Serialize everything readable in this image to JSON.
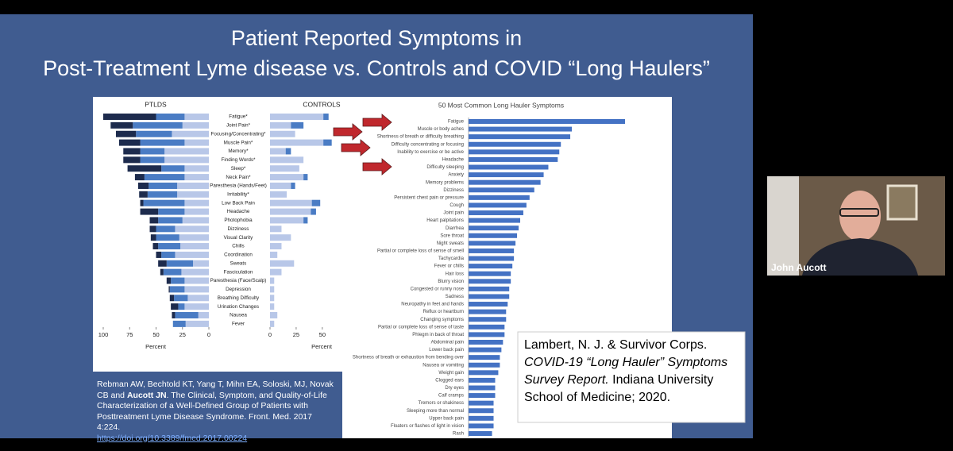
{
  "slide": {
    "title": [
      "Patient Reported Symptoms in",
      "Post-Treatment Lyme disease vs. Controls and COVID “Long Haulers”"
    ],
    "citation": {
      "authors": "Rebman AW, Bechtold KT, Yang T,  Mihn EA, Soloski, MJ, Novak CB and ",
      "highlight": "Aucott JN",
      "rest": ". The Clinical, Symptom, and Quality-of-Life Characterization of a Well-Defined Group of Patients with Posttreatment Lyme Disease Syndrome. Front. Med. 2017 4:224.",
      "link": "https://doi.org/10.3389/fmed.2017.00224"
    },
    "reference": {
      "authors": "Lambert, N. J. & Survivor Corps.",
      "title": "COVID-19 “Long Hauler” Symptoms Survey Report.",
      "rest": " Indiana University School of Medicine; 2020."
    }
  },
  "participant": {
    "name": "John Aucott"
  },
  "chart_data": [
    {
      "type": "bar",
      "title": "PTLDS",
      "xlabel": "Percent",
      "xlim": [
        100,
        0
      ],
      "xticks": [
        100,
        75,
        50,
        25,
        0
      ],
      "categories": [
        "Fatigue*",
        "Joint Pain*",
        "Focusing/Concentrating*",
        "Muscle Pain*",
        "Memory*",
        "Finding Words*",
        "Sleep*",
        "Neck Pain*",
        "Paresthesia (Hands/Feet)",
        "Irritability*",
        "Low Back Pain",
        "Headache",
        "Photophobia",
        "Dizziness",
        "Visual Clarity",
        "Chills",
        "Coordination",
        "Sweats",
        "Fasciculation",
        "Paresthesia (Face/Scalp)",
        "Depression",
        "Breathing Difficulty",
        "Urination Changes",
        "Nausea",
        "Fever"
      ],
      "series": [
        {
          "color": "#b8c7e8",
          "values": [
            23,
            25,
            35,
            23,
            42,
            42,
            23,
            23,
            30,
            30,
            23,
            23,
            25,
            32,
            28,
            27,
            32,
            15,
            26,
            23,
            23,
            20,
            23,
            10,
            22
          ]
        },
        {
          "color": "#4a7cc4",
          "values": [
            27,
            47,
            34,
            42,
            23,
            23,
            22,
            38,
            27,
            28,
            39,
            25,
            23,
            18,
            22,
            21,
            13,
            25,
            17,
            13,
            14,
            13,
            6,
            22,
            12
          ]
        },
        {
          "color": "#1d2b4d",
          "values": [
            50,
            21,
            19,
            20,
            16,
            16,
            32,
            9,
            10,
            8,
            3,
            17,
            8,
            6,
            5,
            5,
            5,
            8,
            3,
            4,
            1,
            4,
            7,
            3,
            0
          ]
        }
      ]
    },
    {
      "type": "bar",
      "title": "CONTROLS",
      "xlabel": "Percent",
      "xlim": [
        0,
        60
      ],
      "xticks": [
        0,
        25,
        50
      ],
      "series": [
        {
          "color": "#b8c7e8",
          "values": [
            51,
            20,
            24,
            51,
            15,
            32,
            28,
            32,
            20,
            16,
            40,
            39,
            32,
            11,
            20,
            11,
            7,
            23,
            11,
            4,
            4,
            4,
            4,
            7,
            4
          ]
        },
        {
          "color": "#4a7cc4",
          "values": [
            5,
            12,
            0,
            8,
            5,
            0,
            0,
            4,
            4,
            0,
            8,
            5,
            4,
            0,
            0,
            0,
            0,
            0,
            0,
            0,
            0,
            0,
            0,
            0,
            0
          ]
        }
      ]
    },
    {
      "type": "bar",
      "title": "50 Most Common Long Hauler Symptoms",
      "color": "#4472c4",
      "categories": [
        "Fatigue",
        "Muscle or body aches",
        "Shortness of breath or difficulty breathing",
        "Difficulty concentrating or focusing",
        "Inability to exercise or be active",
        "Headache",
        "Difficulty sleeping",
        "Anxiety",
        "Memory problems",
        "Dizziness",
        "Persistent chest pain or pressure",
        "Cough",
        "Joint pain",
        "Heart palpitations",
        "Diarrhea",
        "Sore throat",
        "Night sweats",
        "Partial or complete loss of sense of smell",
        "Tachycardia",
        "Fever or chills",
        "Hair loss",
        "Blurry vision",
        "Congested or runny nose",
        "Sadness",
        "Neuropathy in feet and hands",
        "Reflux or heartburn",
        "Changing symptoms",
        "Partial or complete loss of sense of taste",
        "Phlegm in back of throat",
        "Abdominal pain",
        "Lower back pain",
        "Shortness of breath or exhaustion from bending over",
        "Nausea or vomiting",
        "Weight gain",
        "Clogged ears",
        "Dry eyes",
        "Calf cramps",
        "Tremors or shakiness",
        "Sleeping more than normal",
        "Upper back pain",
        "Floaters or flashes of light in vision",
        "Rash"
      ],
      "values": [
        100,
        66,
        65,
        59,
        58,
        57,
        51,
        48,
        46,
        42,
        39,
        37,
        35,
        33,
        32,
        31,
        30,
        29,
        29,
        28,
        27,
        27,
        26,
        26,
        25,
        24,
        24,
        23,
        23,
        22,
        21,
        20,
        20,
        19,
        17,
        17,
        17,
        16,
        16,
        16,
        16,
        15
      ]
    }
  ]
}
